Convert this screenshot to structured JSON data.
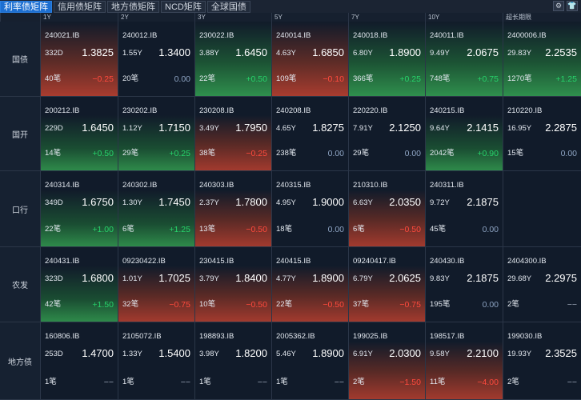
{
  "tabs": [
    {
      "label": "利率债矩阵",
      "active": true
    },
    {
      "label": "信用债矩阵",
      "active": false
    },
    {
      "label": "地方债矩阵",
      "active": false
    },
    {
      "label": "NCD矩阵",
      "active": false
    },
    {
      "label": "全球国债",
      "active": false
    }
  ],
  "toolbar_icons": [
    {
      "name": "settings-icon",
      "glyph": "⚙"
    },
    {
      "name": "skin-icon",
      "glyph": "👕"
    }
  ],
  "columns": [
    "1Y",
    "2Y",
    "3Y",
    "5Y",
    "7Y",
    "10Y",
    "超长期限"
  ],
  "rows": [
    {
      "label": "国债",
      "cells": [
        {
          "code": "240021.IB",
          "term": "332D",
          "yield": "1.3825",
          "count": "40笔",
          "change": "−0.25",
          "dir": "dn"
        },
        {
          "code": "240012.IB",
          "term": "1.55Y",
          "yield": "1.3400",
          "count": "20笔",
          "change": "0.00",
          "dir": "zero"
        },
        {
          "code": "230022.IB",
          "term": "3.88Y",
          "yield": "1.6450",
          "count": "22笔",
          "change": "+0.50",
          "dir": "up"
        },
        {
          "code": "240014.IB",
          "term": "4.63Y",
          "yield": "1.6850",
          "count": "109笔",
          "change": "−0.10",
          "dir": "dn"
        },
        {
          "code": "240018.IB",
          "term": "6.80Y",
          "yield": "1.8900",
          "count": "366笔",
          "change": "+0.25",
          "dir": "up"
        },
        {
          "code": "240011.IB",
          "term": "9.49Y",
          "yield": "2.0675",
          "count": "748笔",
          "change": "+0.75",
          "dir": "up"
        },
        {
          "code": "2400006.IB",
          "term": "29.83Y",
          "yield": "2.2535",
          "count": "1270笔",
          "change": "+1.25",
          "dir": "up"
        }
      ]
    },
    {
      "label": "国开",
      "cells": [
        {
          "code": "200212.IB",
          "term": "229D",
          "yield": "1.6450",
          "count": "14笔",
          "change": "+0.50",
          "dir": "up"
        },
        {
          "code": "230202.IB",
          "term": "1.12Y",
          "yield": "1.7150",
          "count": "29笔",
          "change": "+0.25",
          "dir": "up"
        },
        {
          "code": "230208.IB",
          "term": "3.49Y",
          "yield": "1.7950",
          "count": "38笔",
          "change": "−0.25",
          "dir": "dn"
        },
        {
          "code": "240208.IB",
          "term": "4.65Y",
          "yield": "1.8275",
          "count": "238笔",
          "change": "0.00",
          "dir": "zero"
        },
        {
          "code": "220220.IB",
          "term": "7.91Y",
          "yield": "2.1250",
          "count": "29笔",
          "change": "0.00",
          "dir": "zero"
        },
        {
          "code": "240215.IB",
          "term": "9.64Y",
          "yield": "2.1415",
          "count": "2042笔",
          "change": "+0.90",
          "dir": "up"
        },
        {
          "code": "210220.IB",
          "term": "16.95Y",
          "yield": "2.2875",
          "count": "15笔",
          "change": "0.00",
          "dir": "zero"
        }
      ]
    },
    {
      "label": "口行",
      "cells": [
        {
          "code": "240314.IB",
          "term": "349D",
          "yield": "1.6750",
          "count": "22笔",
          "change": "+1.00",
          "dir": "up"
        },
        {
          "code": "240302.IB",
          "term": "1.30Y",
          "yield": "1.7450",
          "count": "6笔",
          "change": "+1.25",
          "dir": "up"
        },
        {
          "code": "240303.IB",
          "term": "2.37Y",
          "yield": "1.7800",
          "count": "13笔",
          "change": "−0.50",
          "dir": "dn"
        },
        {
          "code": "240315.IB",
          "term": "4.95Y",
          "yield": "1.9000",
          "count": "18笔",
          "change": "0.00",
          "dir": "zero"
        },
        {
          "code": "210310.IB",
          "term": "6.63Y",
          "yield": "2.0350",
          "count": "6笔",
          "change": "−0.50",
          "dir": "dn"
        },
        {
          "code": "240311.IB",
          "term": "9.72Y",
          "yield": "2.1875",
          "count": "45笔",
          "change": "0.00",
          "dir": "zero"
        },
        null
      ]
    },
    {
      "label": "农发",
      "cells": [
        {
          "code": "240431.IB",
          "term": "323D",
          "yield": "1.6800",
          "count": "42笔",
          "change": "+1.50",
          "dir": "up"
        },
        {
          "code": "09230422.IB",
          "term": "1.01Y",
          "yield": "1.7025",
          "count": "32笔",
          "change": "−0.75",
          "dir": "dn"
        },
        {
          "code": "230415.IB",
          "term": "3.79Y",
          "yield": "1.8400",
          "count": "10笔",
          "change": "−0.50",
          "dir": "dn"
        },
        {
          "code": "240415.IB",
          "term": "4.77Y",
          "yield": "1.8900",
          "count": "22笔",
          "change": "−0.50",
          "dir": "dn"
        },
        {
          "code": "09240417.IB",
          "term": "6.79Y",
          "yield": "2.0625",
          "count": "37笔",
          "change": "−0.75",
          "dir": "dn"
        },
        {
          "code": "240430.IB",
          "term": "9.83Y",
          "yield": "2.1875",
          "count": "195笔",
          "change": "0.00",
          "dir": "zero"
        },
        {
          "code": "2404300.IB",
          "term": "29.68Y",
          "yield": "2.2975",
          "count": "2笔",
          "change": "−−",
          "dir": "dash"
        }
      ]
    },
    {
      "label": "地方债",
      "cells": [
        {
          "code": "160806.IB",
          "term": "253D",
          "yield": "1.4700",
          "count": "1笔",
          "change": "−−",
          "dir": "dash"
        },
        {
          "code": "2105072.IB",
          "term": "1.33Y",
          "yield": "1.5400",
          "count": "1笔",
          "change": "−−",
          "dir": "dash"
        },
        {
          "code": "198893.IB",
          "term": "3.98Y",
          "yield": "1.8200",
          "count": "1笔",
          "change": "−−",
          "dir": "dash"
        },
        {
          "code": "2005362.IB",
          "term": "5.46Y",
          "yield": "1.8900",
          "count": "1笔",
          "change": "−−",
          "dir": "dash"
        },
        {
          "code": "199025.IB",
          "term": "6.91Y",
          "yield": "2.0300",
          "count": "2笔",
          "change": "−1.50",
          "dir": "dn"
        },
        {
          "code": "198517.IB",
          "term": "9.58Y",
          "yield": "2.2100",
          "count": "11笔",
          "change": "−4.00",
          "dir": "dn"
        },
        {
          "code": "199030.IB",
          "term": "19.93Y",
          "yield": "2.3525",
          "count": "2笔",
          "change": "−−",
          "dir": "dash"
        }
      ]
    }
  ],
  "colors": {
    "up": "#27d36a",
    "down": "#ff4a3d",
    "active_tab": "#1d6fd1",
    "background": "#0e1726"
  }
}
